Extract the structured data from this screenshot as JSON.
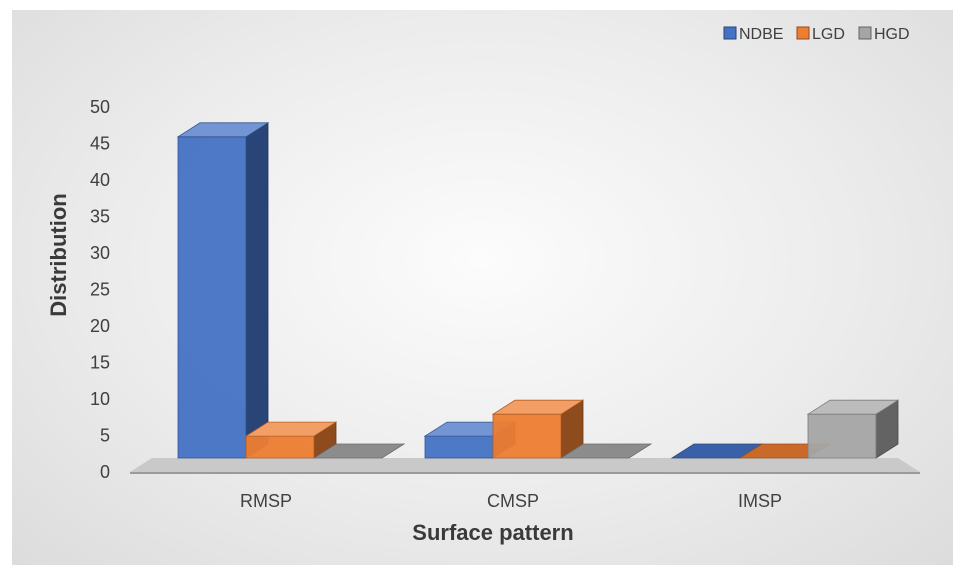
{
  "chart_data": {
    "type": "bar",
    "style": "3d-clustered-column",
    "categories": [
      "RMSP",
      "CMSP",
      "IMSP"
    ],
    "series": [
      {
        "name": "NDBE",
        "values": [
          44,
          3,
          0
        ],
        "color": "#4472c4"
      },
      {
        "name": "LGD",
        "values": [
          3,
          6,
          0
        ],
        "color": "#ed7d31"
      },
      {
        "name": "HGD",
        "values": [
          0,
          0,
          6
        ],
        "color": "#a5a5a5"
      }
    ],
    "title": "",
    "xlabel": "Surface pattern",
    "ylabel": "Distribution",
    "ylim": [
      0,
      50
    ],
    "yticks": [
      0,
      5,
      10,
      15,
      20,
      25,
      30,
      35,
      40,
      45,
      50
    ],
    "grid": false,
    "legend": "top-right"
  }
}
